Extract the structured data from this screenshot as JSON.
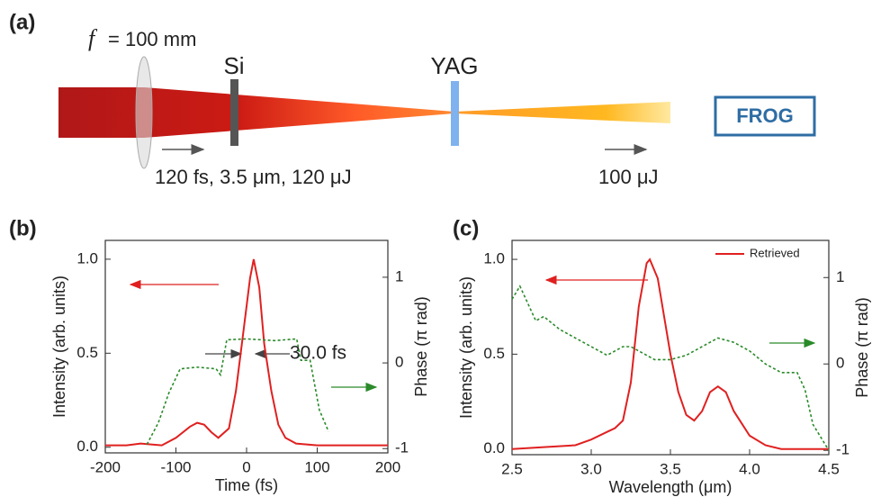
{
  "diagram": {
    "label": "(a)",
    "focal_symbol": "f",
    "focal_value": "= 100 mm",
    "si": "Si",
    "yag": "YAG",
    "frog": "FROG",
    "input": "120 fs, 3.5 μm, 120 μJ",
    "output": "100 μJ"
  },
  "chart_data": [
    {
      "type": "line",
      "panel": "(b)",
      "xlabel": "Time (fs)",
      "ylabel": "Intensity (arb. units)",
      "y2label": "Phase (π rad)",
      "annotation": "30.0 fs",
      "xlim": [
        -200,
        200
      ],
      "xticks": [
        -200,
        -100,
        0,
        100,
        200
      ],
      "ylim": [
        -0.03,
        1.1
      ],
      "yticks": [
        {
          "value": 0,
          "label": "0.0"
        },
        {
          "value": 0.5,
          "label": "0.5"
        },
        {
          "value": 1,
          "label": "1.0"
        }
      ],
      "y2lim": [
        -1.05,
        1.43
      ],
      "y2ticks": [
        -1,
        0,
        1
      ],
      "series": [
        {
          "color": "#e02020",
          "style": "solid",
          "x": [
            -200,
            -170,
            -150,
            -120,
            -100,
            -80,
            -70,
            -60,
            -50,
            -40,
            -25,
            -15,
            -5,
            5,
            10,
            18,
            25,
            35,
            45,
            55,
            70,
            100,
            200
          ],
          "values": [
            0.01,
            0.01,
            0.02,
            0.01,
            0.05,
            0.11,
            0.13,
            0.12,
            0.08,
            0.05,
            0.1,
            0.3,
            0.6,
            0.9,
            1.0,
            0.85,
            0.55,
            0.3,
            0.12,
            0.05,
            0.02,
            0.01,
            0.01
          ]
        },
        {
          "color": "#2a8a2a",
          "style": "dotted",
          "axis": "y2",
          "x": [
            -141,
            -125,
            -110,
            -94,
            -70,
            -43,
            -37,
            -28,
            0,
            40,
            71,
            77,
            90,
            103,
            116
          ],
          "values": [
            -0.95,
            -0.7,
            -0.35,
            -0.07,
            -0.05,
            -0.07,
            -0.14,
            0.27,
            0.28,
            0.26,
            0.28,
            0.03,
            0.03,
            -0.55,
            -0.8
          ]
        }
      ]
    },
    {
      "type": "line",
      "panel": "(c)",
      "xlabel": "Wavelength (μm)",
      "ylabel": "Intensity (arb. units)",
      "y2label": "Phase (π rad)",
      "legend": "upper right",
      "xlim": [
        2.5,
        4.5
      ],
      "xticks": [
        2.5,
        {
          "value": 3,
          "label": "3.0"
        },
        3.5,
        {
          "value": 4,
          "label": "4.0"
        },
        4.5
      ],
      "ylim": [
        -0.03,
        1.1
      ],
      "yticks": [
        {
          "value": 0,
          "label": "0.0"
        },
        {
          "value": 0.5,
          "label": "0.5"
        },
        {
          "value": 1,
          "label": "1.0"
        }
      ],
      "y2lim": [
        -1.05,
        1.43
      ],
      "y2ticks": [
        -1,
        0,
        1
      ],
      "series": [
        {
          "name": "Retrieved",
          "color": "#e02020",
          "style": "solid",
          "x": [
            2.5,
            2.7,
            2.9,
            3.0,
            3.1,
            3.15,
            3.2,
            3.25,
            3.3,
            3.35,
            3.37,
            3.42,
            3.5,
            3.55,
            3.6,
            3.65,
            3.7,
            3.75,
            3.8,
            3.85,
            3.9,
            4.0,
            4.1,
            4.2,
            4.5
          ],
          "values": [
            0,
            0.01,
            0.02,
            0.05,
            0.09,
            0.11,
            0.15,
            0.35,
            0.75,
            0.98,
            1.0,
            0.9,
            0.5,
            0.3,
            0.18,
            0.15,
            0.2,
            0.3,
            0.33,
            0.3,
            0.2,
            0.07,
            0.02,
            0,
            0
          ]
        },
        {
          "color": "#2a8a2a",
          "style": "dotted",
          "axis": "y2",
          "x": [
            2.5,
            2.55,
            2.6,
            2.65,
            2.7,
            2.8,
            2.9,
            3.0,
            3.1,
            3.2,
            3.25,
            3.3,
            3.4,
            3.5,
            3.6,
            3.7,
            3.8,
            3.9,
            4.0,
            4.1,
            4.2,
            4.3,
            4.35,
            4.4,
            4.5
          ],
          "values": [
            0.75,
            0.9,
            0.7,
            0.5,
            0.55,
            0.4,
            0.3,
            0.2,
            0.1,
            0.2,
            0.2,
            0.15,
            0.05,
            0.05,
            0.1,
            0.2,
            0.3,
            0.25,
            0.15,
            0.0,
            -0.1,
            -0.1,
            -0.3,
            -0.7,
            -1.0
          ]
        }
      ]
    }
  ]
}
